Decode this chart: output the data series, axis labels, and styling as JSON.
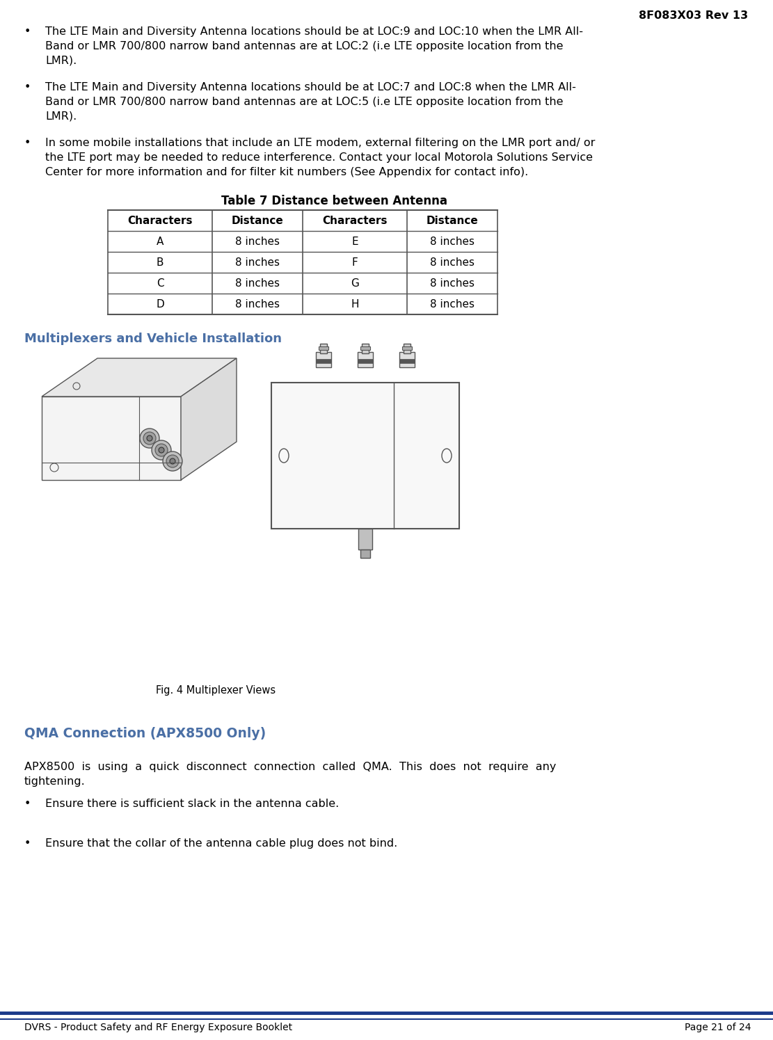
{
  "header_text": "8F083X03 Rev 13",
  "bullet1_line1": "The LTE Main and Diversity Antenna locations should be at LOC:9 and LOC:10 when the LMR All-",
  "bullet1_line2": "Band or LMR 700/800 narrow band antennas are at LOC:2 (i.e LTE opposite location from the",
  "bullet1_line3": "LMR).",
  "bullet2_line1": "The LTE Main and Diversity Antenna locations should be at LOC:7 and LOC:8 when the LMR All-",
  "bullet2_line2": "Band or LMR 700/800 narrow band antennas are at LOC:5 (i.e LTE opposite location from the",
  "bullet2_line3": "LMR).",
  "bullet3_line1": "In some mobile installations that include an LTE modem, external filtering on the LMR port and/ or",
  "bullet3_line2": "the LTE port may be needed to reduce interference. Contact your local Motorola Solutions Service",
  "bullet3_line3": "Center for more information and for filter kit numbers (See Appendix for contact info).",
  "table_title": "Table 7 Distance between Antenna",
  "table_headers": [
    "Characters",
    "Distance",
    "Characters",
    "Distance"
  ],
  "table_rows": [
    [
      "A",
      "8 inches",
      "E",
      "8 inches"
    ],
    [
      "B",
      "8 inches",
      "F",
      "8 inches"
    ],
    [
      "C",
      "8 inches",
      "G",
      "8 inches"
    ],
    [
      "D",
      "8 inches",
      "H",
      "8 inches"
    ]
  ],
  "section_title": "Multiplexers and Vehicle Installation",
  "fig_caption": "Fig. 4 Multiplexer Views",
  "section2_title": "QMA Connection (APX8500 Only)",
  "body_text1_line1": "APX8500  is  using  a  quick  disconnect  connection  called  QMA.  This  does  not  require  any",
  "body_text1_line2": "tightening.",
  "bullet4": "Ensure there is sufficient slack in the antenna cable.",
  "bullet5": "Ensure that the collar of the antenna cable plug does not bind.",
  "footer_left": "DVRS - Product Safety and RF Energy Exposure Booklet",
  "footer_right": "Page 21 of 24",
  "text_color": "#000000",
  "section_color": "#4a6fa5",
  "header_color": "#000000",
  "bg_color": "#ffffff",
  "table_border_color": "#555555",
  "footer_line_color": "#1a3a8a",
  "img_line_color": "#555555"
}
